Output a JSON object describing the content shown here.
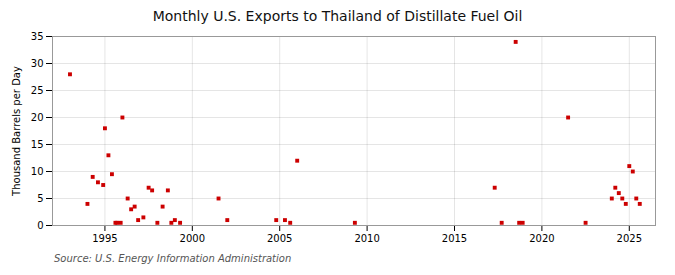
{
  "chart_data": {
    "type": "scatter",
    "title": "Monthly U.S. Exports to Thailand of Distillate Fuel Oil",
    "ylabel": "Thousand Barrels per Day",
    "source": "Source: U.S. Energy Information Administration",
    "color": "#cc0000",
    "marker": "square",
    "grid": true,
    "xlim": [
      1992,
      2026.5
    ],
    "ylim": [
      0,
      35
    ],
    "xticks": [
      1995,
      2000,
      2005,
      2010,
      2015,
      2020,
      2025
    ],
    "yticks": [
      0,
      5,
      10,
      15,
      20,
      25,
      30,
      35
    ],
    "x": [
      1993.0,
      1994.0,
      1994.3,
      1994.6,
      1994.9,
      1995.0,
      1995.2,
      1995.4,
      1995.6,
      1995.7,
      1995.9,
      1996.0,
      1996.3,
      1996.5,
      1996.7,
      1996.9,
      1997.2,
      1997.5,
      1997.7,
      1998.0,
      1998.3,
      1998.6,
      1998.8,
      1999.0,
      1999.3,
      2001.5,
      2002.0,
      2004.8,
      2005.3,
      2005.6,
      2006.0,
      2009.3,
      2017.3,
      2017.7,
      2018.5,
      2018.7,
      2018.9,
      2021.5,
      2022.5,
      2024.0,
      2024.2,
      2024.4,
      2024.6,
      2024.8,
      2025.0,
      2025.2,
      2025.4,
      2025.6
    ],
    "values": [
      28.0,
      4.0,
      9.0,
      8.0,
      7.5,
      18.0,
      13.0,
      9.5,
      0.5,
      0.5,
      0.5,
      20.0,
      5.0,
      3.0,
      3.5,
      1.0,
      1.5,
      7.0,
      6.5,
      0.5,
      3.5,
      6.5,
      0.5,
      1.0,
      0.5,
      5.0,
      1.0,
      1.0,
      1.0,
      0.5,
      12.0,
      0.5,
      7.0,
      0.5,
      34.0,
      0.5,
      0.5,
      20.0,
      0.5,
      5.0,
      7.0,
      6.0,
      5.0,
      4.0,
      11.0,
      10.0,
      5.0,
      4.0
    ]
  }
}
